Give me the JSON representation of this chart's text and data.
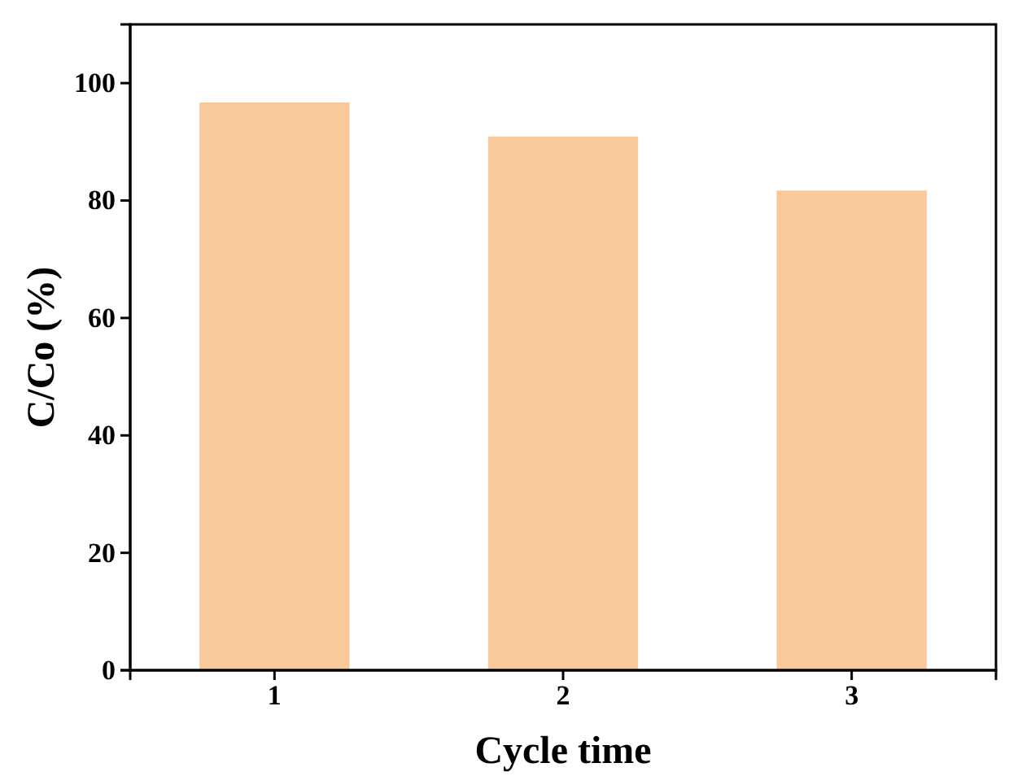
{
  "chart_data": {
    "type": "bar",
    "xlabel": "Cycle time",
    "ylabel": "C/Co (%)",
    "categories": [
      "1",
      "2",
      "3"
    ],
    "values": [
      96.7,
      90.9,
      81.7
    ],
    "color": "#f9c89b",
    "ylim": [
      0,
      110
    ],
    "yticks": [
      0,
      20,
      40,
      60,
      80,
      100
    ],
    "grid": false
  }
}
